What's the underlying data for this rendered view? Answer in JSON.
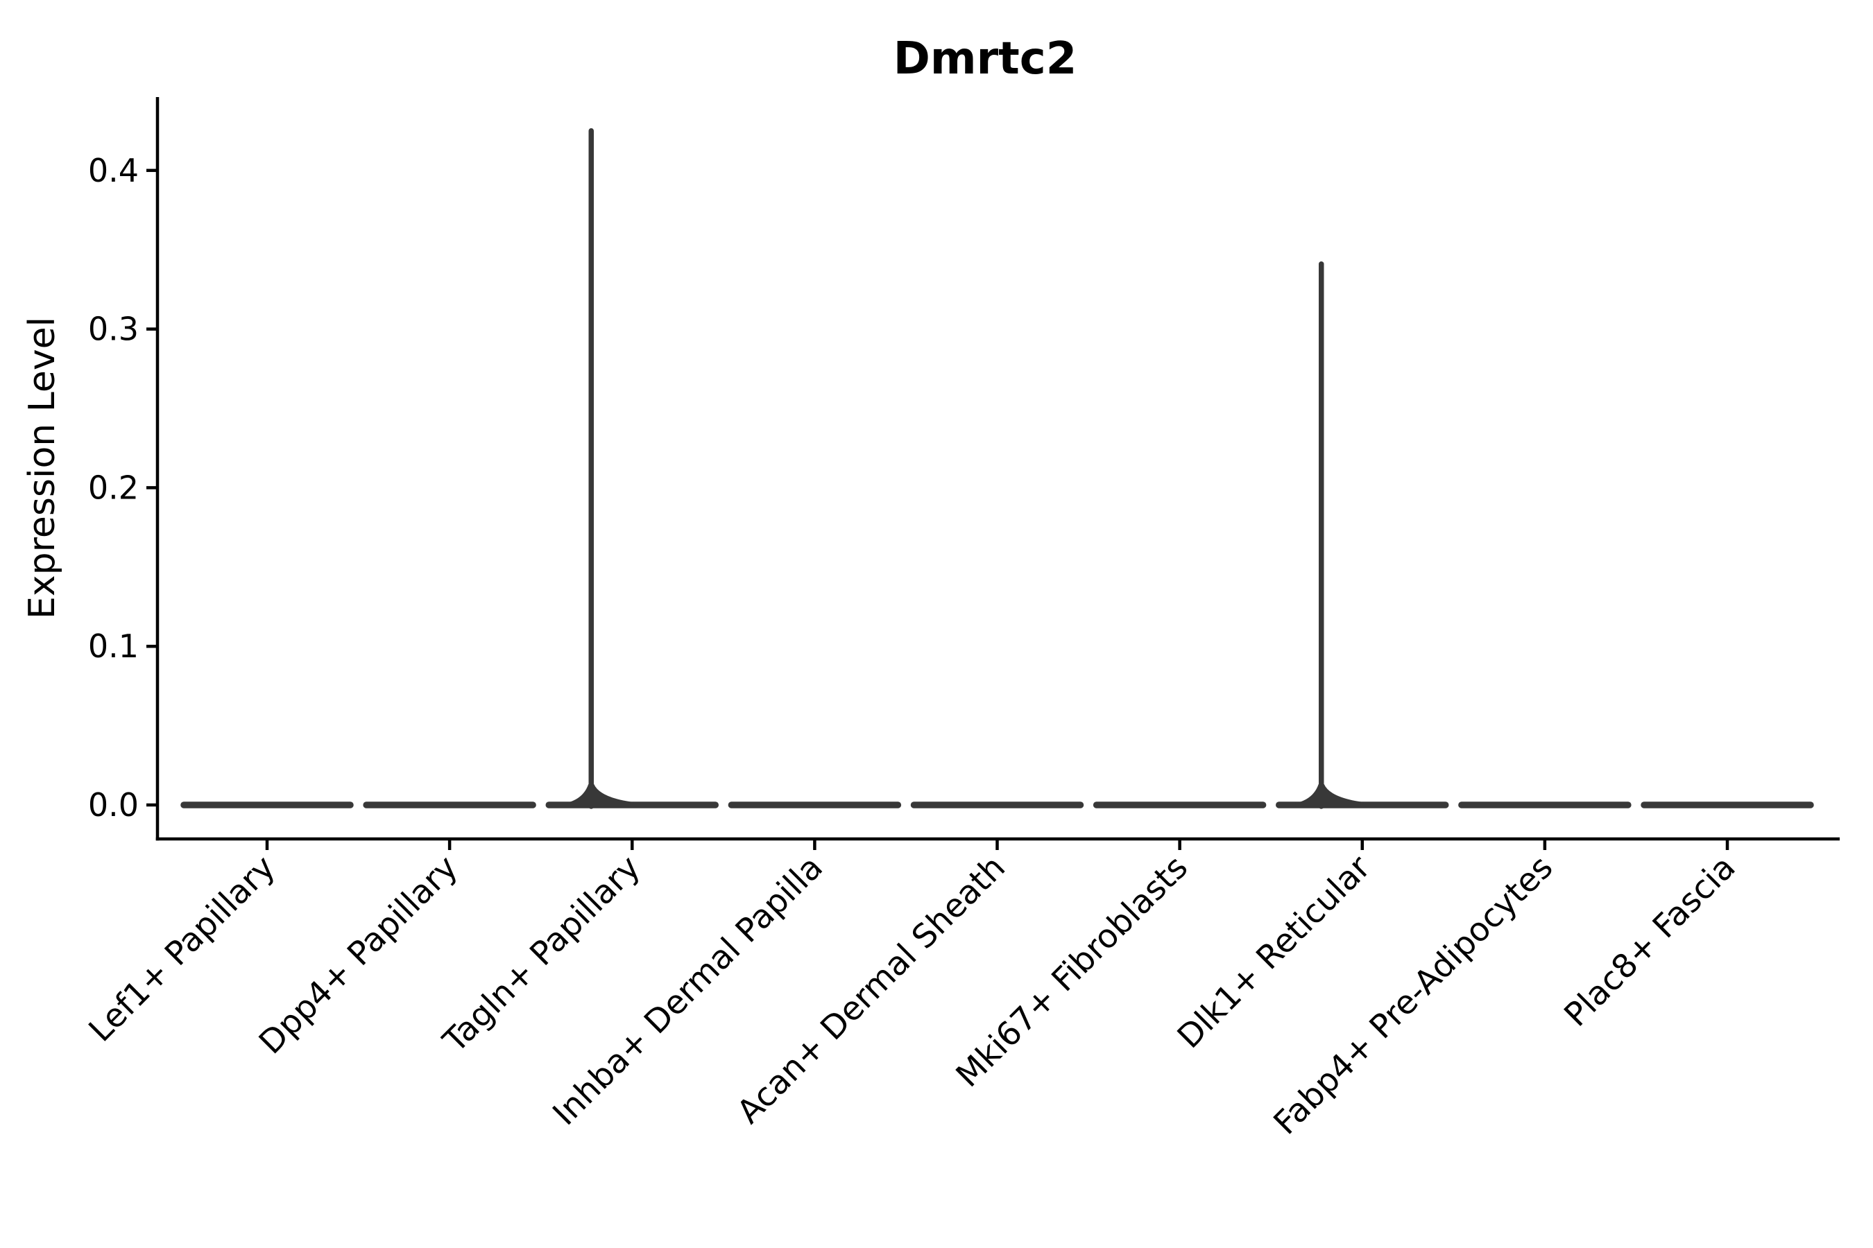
{
  "figure": {
    "background": "#ffffff"
  },
  "chart_data": {
    "type": "violin",
    "title": "Dmrtc2",
    "ylabel": "Expression Level",
    "xlabel": "",
    "categories": [
      "Lef1+ Papillary",
      "Dpp4+ Papillary",
      "Tagln+ Papillary",
      "Inhba+ Dermal Papilla",
      "Acan+ Dermal Sheath",
      "Mki67+ Fibroblasts",
      "Dlk1+ Reticular",
      "Fabp4+ Pre-Adipocytes",
      "Plac8+ Fascia"
    ],
    "yticks": [
      "0.0",
      "0.1",
      "0.2",
      "0.3",
      "0.4"
    ],
    "ylim": [
      0,
      0.45
    ],
    "series": [
      {
        "name": "median_expression",
        "values": [
          0,
          0,
          0,
          0,
          0,
          0,
          0,
          0,
          0
        ]
      },
      {
        "name": "max_expression",
        "values": [
          0,
          0,
          0.425,
          0,
          0,
          0,
          0.341,
          0,
          0
        ]
      }
    ],
    "violin_color": "#383838",
    "axis_color": "#000000",
    "grid": false,
    "legend": false,
    "x_tick_label_rotation": 45
  }
}
